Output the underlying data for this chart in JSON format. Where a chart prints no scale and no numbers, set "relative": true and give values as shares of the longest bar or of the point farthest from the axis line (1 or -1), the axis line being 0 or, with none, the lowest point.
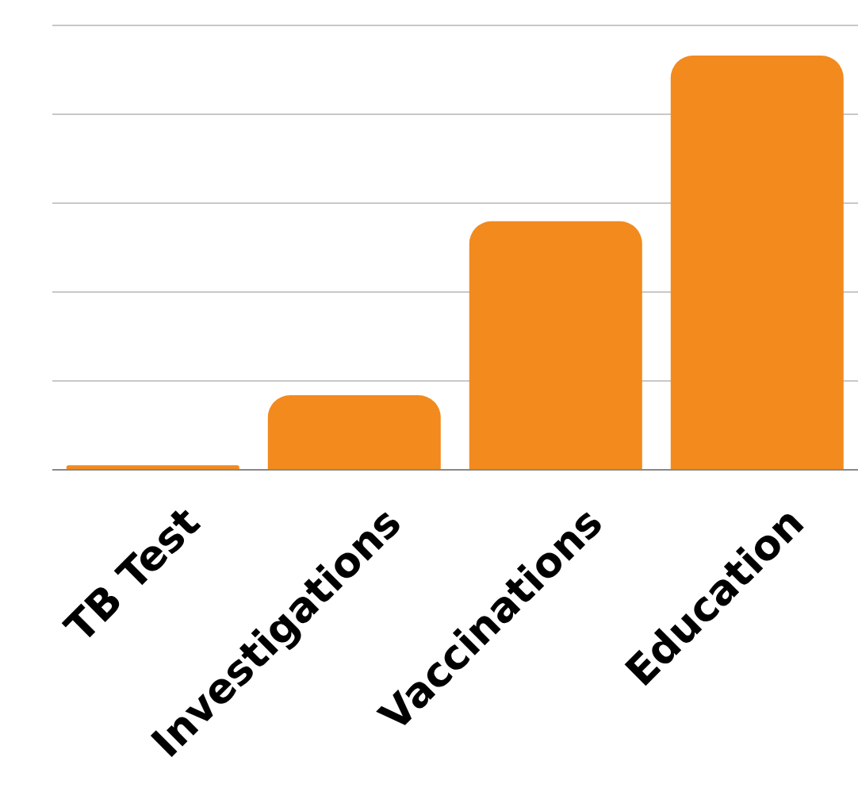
{
  "chart_data": {
    "type": "bar",
    "relative": true,
    "grid": "y",
    "categories": [
      "TB Test",
      "Investigations",
      "Vaccinations",
      "Education"
    ],
    "values": [
      0.011,
      0.18,
      0.6,
      1
    ],
    "color": "#f28a1e"
  }
}
